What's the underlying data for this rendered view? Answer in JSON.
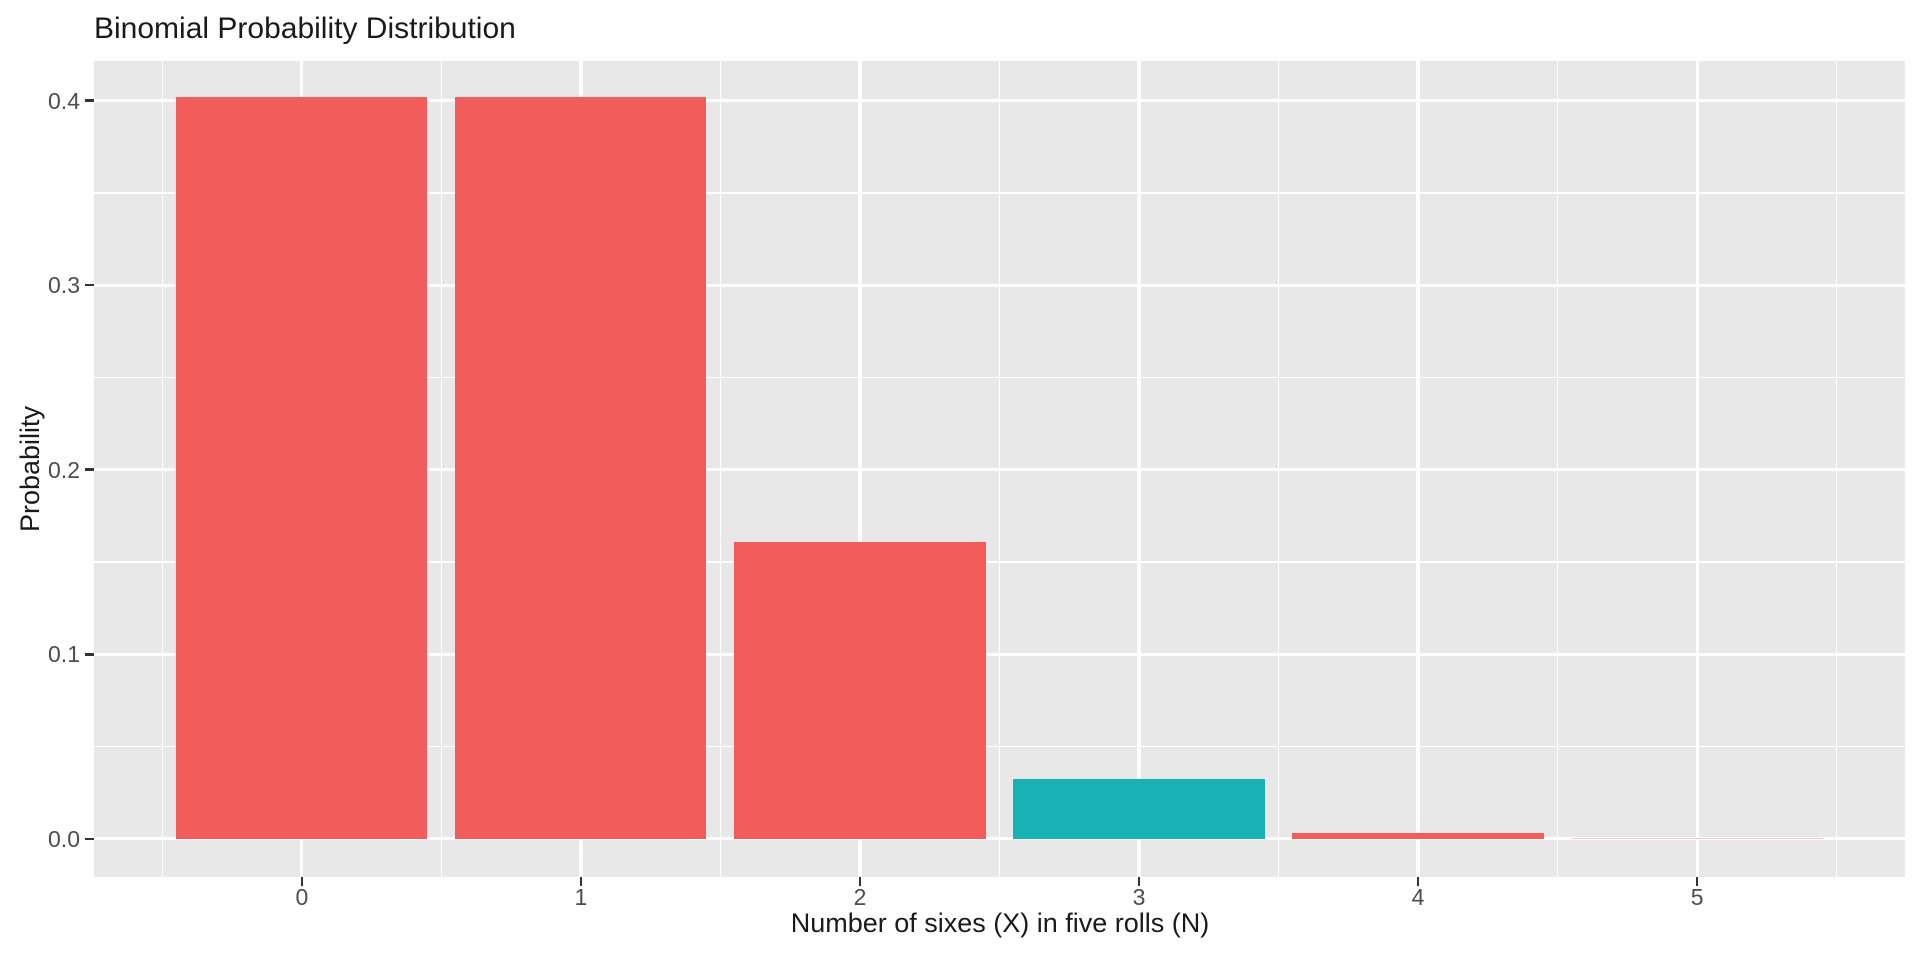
{
  "chart_data": {
    "type": "bar",
    "title": "Binomial Probability Distribution",
    "xlabel": "Number of sixes (X) in five rolls (N)",
    "ylabel": "Probability",
    "categories": [
      0,
      1,
      2,
      3,
      4,
      5
    ],
    "x_tick_labels": [
      "0",
      "1",
      "2",
      "3",
      "4",
      "5"
    ],
    "values": [
      0.401878,
      0.401878,
      0.160751,
      0.03215,
      0.003215,
      0.000129
    ],
    "bar_colors": [
      "#f25c5b",
      "#f25c5b",
      "#f25c5b",
      "#18b2b5",
      "#f25c5b",
      "#f25c5b"
    ],
    "bar_width": 0.9,
    "y_ticks": [
      0.0,
      0.1,
      0.2,
      0.3,
      0.4
    ],
    "y_tick_labels": [
      "0.0",
      "0.1",
      "0.2",
      "0.3",
      "0.4"
    ],
    "y_minor_ticks": [
      0.05,
      0.15,
      0.25,
      0.35
    ],
    "x_minor_ticks": [
      -0.5,
      0.5,
      1.5,
      2.5,
      3.5,
      4.5,
      5.5
    ],
    "xlim": [
      -0.745,
      5.745
    ],
    "ylim": [
      -0.0207,
      0.4215
    ],
    "grid": true,
    "legend_position": "none",
    "colors": {
      "panel_background": "#e8e8e8",
      "gridline": "#ffffff",
      "tick_mark": "#333333",
      "tick_label": "#4d4d4d",
      "title_text": "#1a1a1a",
      "bar_red": "#f25c5b",
      "bar_teal": "#18b2b5"
    }
  }
}
